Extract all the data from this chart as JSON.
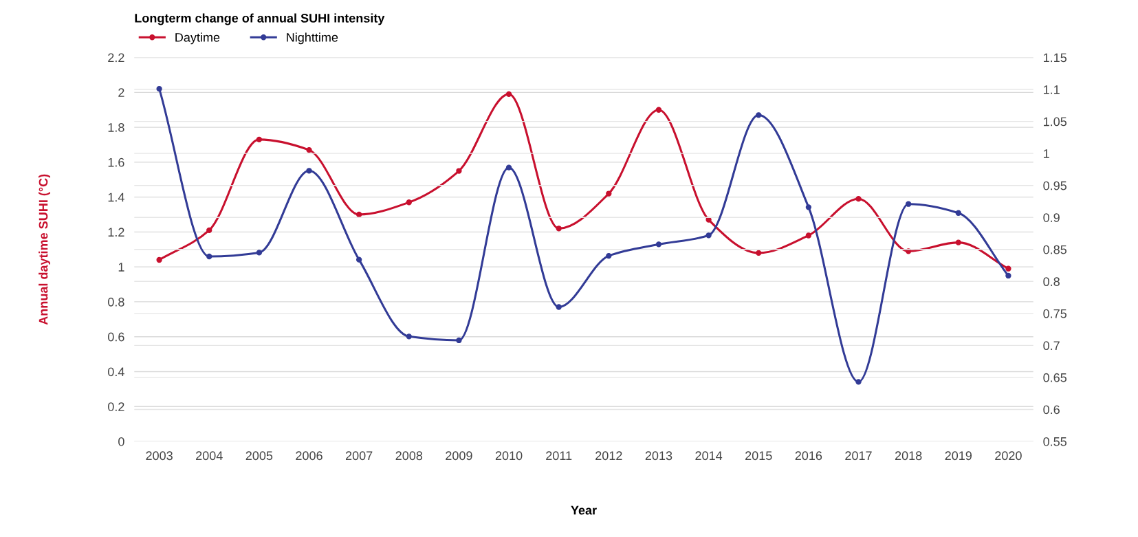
{
  "chart_data": {
    "type": "line",
    "title": "Longterm change of annual SUHI intensity",
    "xlabel": "Year",
    "ylabel": "Annual daytime SUHI (°C)",
    "categories": [
      "2003",
      "2004",
      "2005",
      "2006",
      "2007",
      "2008",
      "2009",
      "2010",
      "2011",
      "2012",
      "2013",
      "2014",
      "2015",
      "2016",
      "2017",
      "2018",
      "2019",
      "2020"
    ],
    "series": [
      {
        "name": "Daytime",
        "color": "#c8102e",
        "values": [
          1.04,
          1.21,
          1.73,
          1.67,
          1.3,
          1.37,
          1.55,
          1.99,
          1.22,
          1.42,
          1.9,
          1.27,
          1.08,
          1.18,
          1.39,
          1.09,
          1.14,
          0.99
        ]
      },
      {
        "name": "Nighttime",
        "color": "#323b96",
        "axis": "y2",
        "values": [
          1.101,
          0.839,
          0.845,
          0.973,
          0.834,
          0.714,
          0.708,
          0.978,
          0.76,
          0.84,
          0.858,
          0.872,
          1.06,
          0.916,
          0.643,
          0.921,
          0.907,
          0.809
        ]
      }
    ],
    "ylim": [
      0,
      2.2
    ],
    "yticks": [
      0,
      0.2,
      0.4,
      0.6,
      0.8,
      1,
      1.2,
      1.4,
      1.6,
      1.8,
      2,
      2.2
    ],
    "y2lim": [
      0.55,
      1.15
    ],
    "y2ticks": [
      0.55,
      0.6,
      0.65,
      0.7,
      0.75,
      0.8,
      0.85,
      0.9,
      0.95,
      1,
      1.05,
      1.1,
      1.15
    ],
    "grid": true,
    "legend": "top left",
    "marker": "circle",
    "line_style": "solid"
  }
}
